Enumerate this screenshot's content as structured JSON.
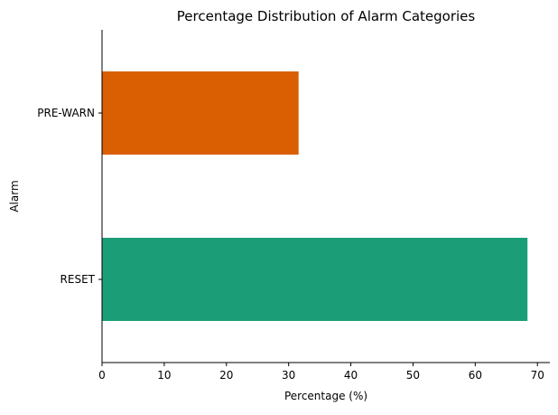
{
  "chart_data": {
    "type": "bar",
    "orientation": "horizontal",
    "title": "Percentage Distribution of Alarm Categories",
    "xlabel": "Percentage (%)",
    "ylabel": "Alarm",
    "categories": [
      "RESET",
      "PRE-WARN"
    ],
    "values": [
      68.4,
      31.6
    ],
    "colors": [
      "#1b9e77",
      "#d95f02"
    ],
    "xlim": [
      0,
      72
    ],
    "xticks": [
      0,
      10,
      20,
      30,
      40,
      50,
      60,
      70
    ],
    "grid": false,
    "legend": "none"
  }
}
